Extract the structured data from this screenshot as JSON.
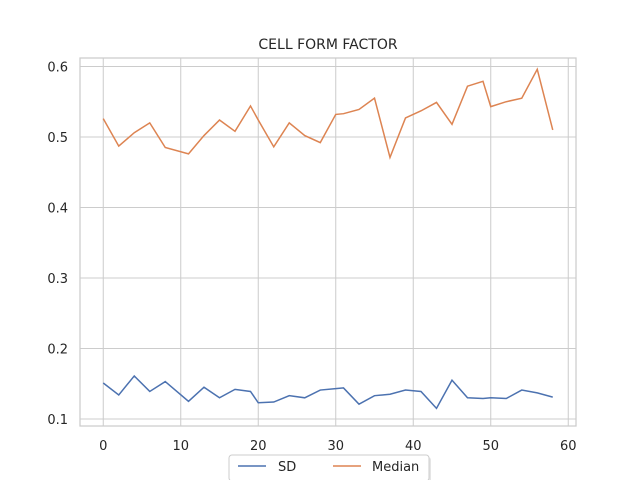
{
  "chart_data": {
    "type": "line",
    "title": "CELL FORM FACTOR",
    "xlabel": "",
    "ylabel": "",
    "xlim": [
      -3.0,
      61.0
    ],
    "ylim": [
      0.09,
      0.612
    ],
    "xticks": [
      0,
      10,
      20,
      30,
      40,
      50,
      60
    ],
    "xtick_labels": [
      "0",
      "10",
      "20",
      "30",
      "40",
      "50",
      "60"
    ],
    "yticks": [
      0.1,
      0.2,
      0.3,
      0.4,
      0.5,
      0.6
    ],
    "ytick_labels": [
      "0.1",
      "0.2",
      "0.3",
      "0.4",
      "0.5",
      "0.6"
    ],
    "grid": true,
    "legend_position": "bottom-center, below axes",
    "x": [
      0,
      2,
      4,
      6,
      8,
      11,
      13,
      15,
      17,
      19,
      20,
      22,
      24,
      26,
      28,
      30,
      31,
      33,
      35,
      37,
      39,
      41,
      43,
      45,
      47,
      49,
      50,
      52,
      54,
      56,
      58
    ],
    "series": [
      {
        "name": "SD",
        "color": "#4c72b0",
        "values": [
          0.151,
          0.134,
          0.161,
          0.139,
          0.153,
          0.125,
          0.145,
          0.13,
          0.142,
          0.139,
          0.123,
          0.124,
          0.133,
          0.13,
          0.141,
          0.143,
          0.144,
          0.121,
          0.133,
          0.135,
          0.141,
          0.139,
          0.115,
          0.155,
          0.13,
          0.129,
          0.13,
          0.129,
          0.141,
          0.137,
          0.131
        ]
      },
      {
        "name": "Median",
        "color": "#dd8452",
        "values": [
          0.526,
          0.487,
          0.506,
          0.52,
          0.485,
          0.476,
          0.502,
          0.524,
          0.508,
          0.544,
          0.524,
          0.486,
          0.52,
          0.502,
          0.492,
          0.532,
          0.533,
          0.539,
          0.555,
          0.471,
          0.527,
          0.537,
          0.549,
          0.518,
          0.572,
          0.579,
          0.543,
          0.55,
          0.555,
          0.596,
          0.51
        ]
      }
    ]
  }
}
